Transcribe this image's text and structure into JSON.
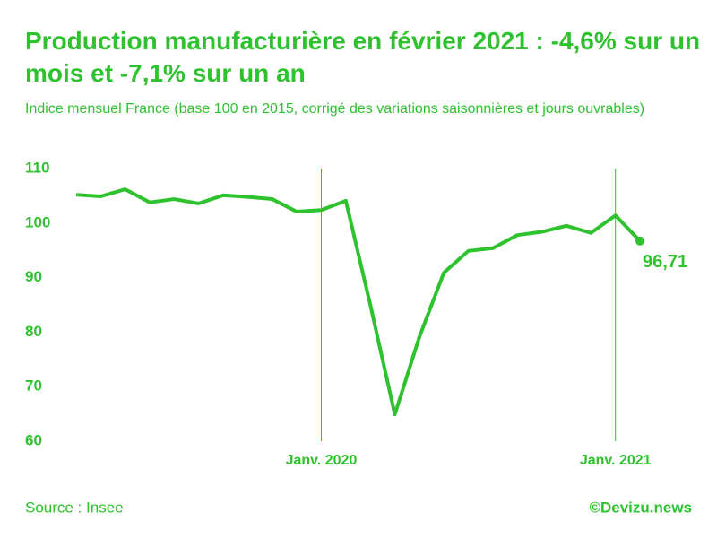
{
  "chart_data": {
    "type": "line",
    "title": "Production manufacturière en février 2021 : -4,6% sur un mois et -7,1% sur un an",
    "subtitle": "Indice mensuel France (base 100 en 2015, corrigé des variations saisonnières et jours ouvrables)",
    "source": "Source : Insee",
    "credit": "©Devizu.news",
    "categories": [
      null,
      null,
      null,
      null,
      null,
      null,
      null,
      null,
      null,
      null,
      "Janv. 2020",
      null,
      null,
      null,
      null,
      null,
      null,
      null,
      null,
      null,
      null,
      null,
      "Janv. 2021",
      null
    ],
    "values": [
      105.2,
      104.9,
      106.2,
      103.8,
      104.4,
      103.6,
      105.1,
      104.8,
      104.4,
      102.1,
      102.4,
      104.1,
      85,
      64.9,
      79.1,
      90.9,
      94.9,
      95.4,
      97.8,
      98.4,
      99.5,
      98.2,
      101.4,
      96.71
    ],
    "value_labels": [
      null,
      null,
      null,
      null,
      null,
      null,
      null,
      null,
      null,
      null,
      null,
      null,
      null,
      null,
      null,
      null,
      null,
      null,
      null,
      null,
      null,
      null,
      null,
      "96,71"
    ],
    "color": "#2fc22f",
    "ylim": [
      60,
      110
    ],
    "yticks": [
      60,
      70,
      80,
      90,
      100,
      110
    ]
  }
}
